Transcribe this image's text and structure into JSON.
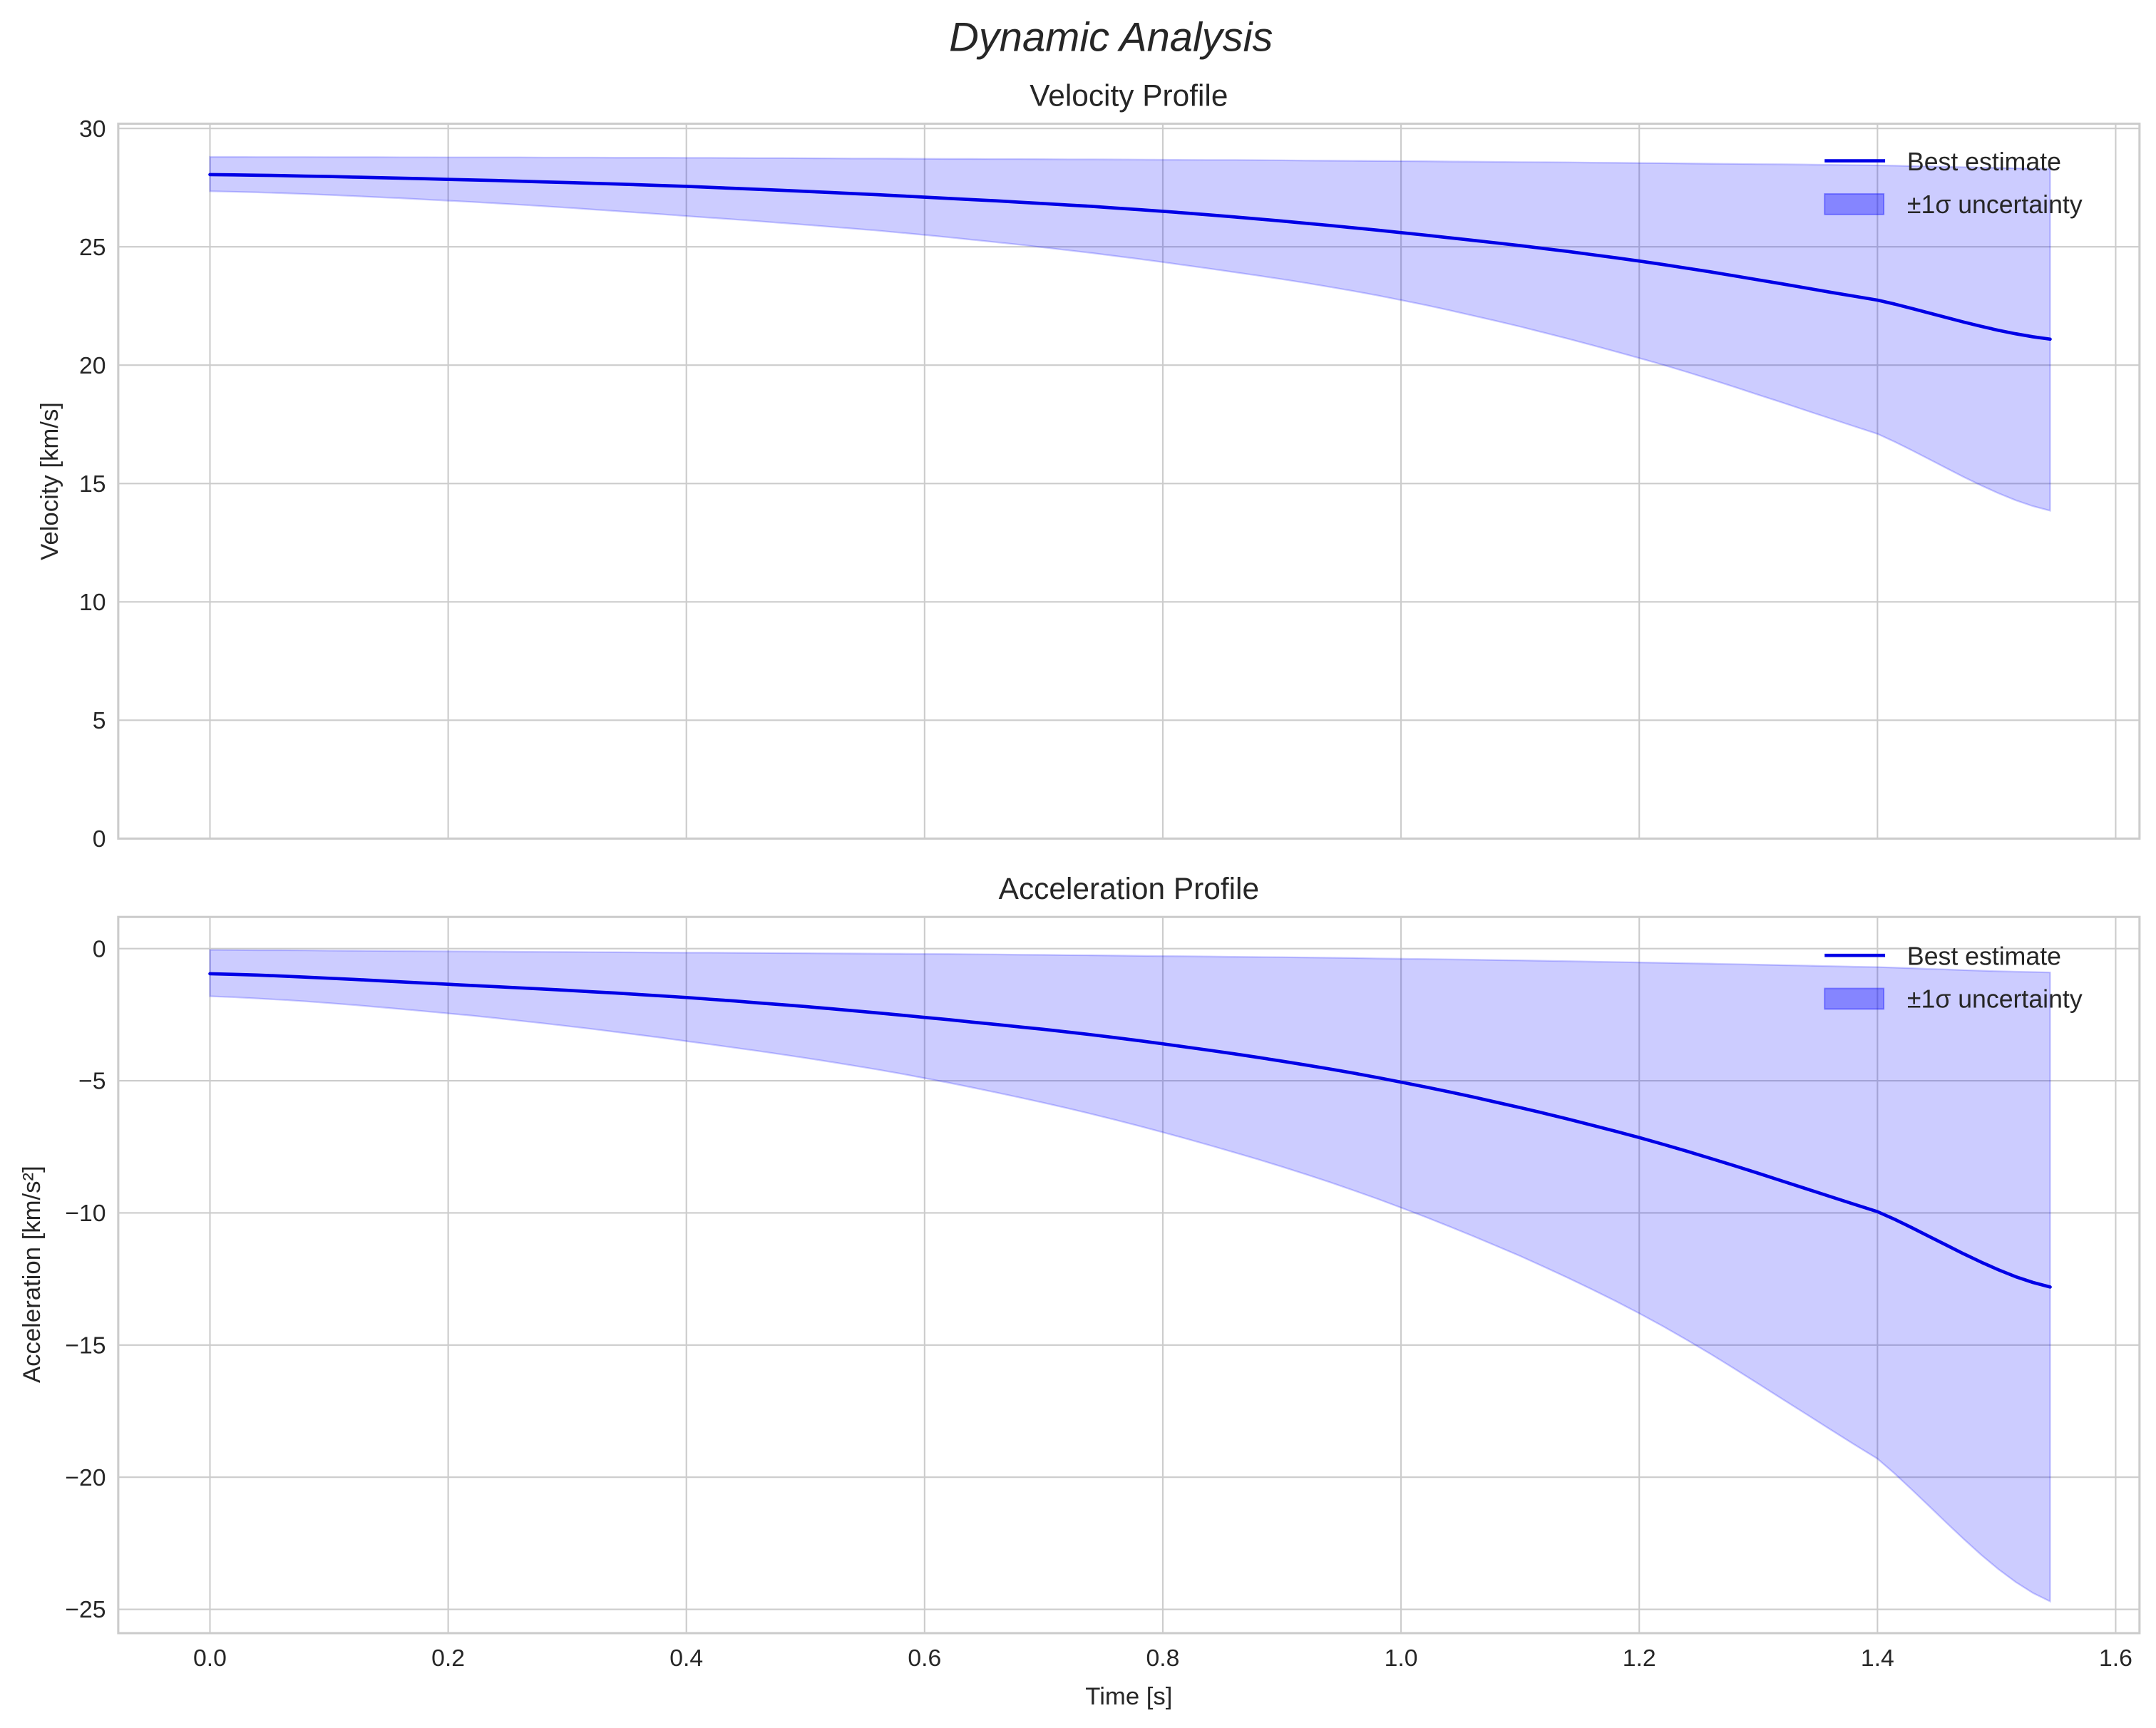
{
  "figure": {
    "suptitle": "Dynamic Analysis",
    "xlabel": "Time [s]"
  },
  "colors": {
    "line": "#0000e6",
    "band": "#0000ff",
    "grid": "#cccccc",
    "text": "#262626"
  },
  "legend": {
    "line_label": "Best estimate",
    "band_label": "±1σ uncertainty"
  },
  "chart_data": [
    {
      "type": "line",
      "title": "Velocity Profile",
      "xlabel": "",
      "ylabel": "Velocity [km/s]",
      "xlim": [
        -0.077,
        1.62
      ],
      "ylim": [
        0,
        30.2
      ],
      "grid": true,
      "legend_position": "upper right",
      "x_ticks": [
        "0.0",
        "0.2",
        "0.4",
        "0.6",
        "0.8",
        "1.0",
        "1.2",
        "1.4",
        "1.6"
      ],
      "y_ticks": [
        "0",
        "5",
        "10",
        "15",
        "20",
        "25",
        "30"
      ],
      "x": [
        0.0,
        0.2,
        0.4,
        0.6,
        0.8,
        1.0,
        1.2,
        1.4,
        1.545
      ],
      "series": [
        {
          "name": "Best estimate",
          "values": [
            28.05,
            27.85,
            27.55,
            27.1,
            26.5,
            25.6,
            24.4,
            22.75,
            21.1
          ]
        },
        {
          "name": "±1σ upper",
          "values": [
            28.8,
            28.78,
            28.76,
            28.72,
            28.68,
            28.62,
            28.54,
            28.44,
            28.3
          ]
        },
        {
          "name": "±1σ lower",
          "values": [
            27.35,
            26.95,
            26.3,
            25.5,
            24.35,
            22.75,
            20.3,
            17.1,
            13.85
          ]
        }
      ]
    },
    {
      "type": "line",
      "title": "Acceleration Profile",
      "xlabel": "Time [s]",
      "ylabel": "Acceleration [km/s²]",
      "xlim": [
        -0.077,
        1.62
      ],
      "ylim": [
        -25.9,
        1.2
      ],
      "grid": true,
      "legend_position": "upper right",
      "x_ticks": [
        "0.0",
        "0.2",
        "0.4",
        "0.6",
        "0.8",
        "1.0",
        "1.2",
        "1.4",
        "1.6"
      ],
      "y_ticks": [
        "0",
        "−5",
        "−10",
        "−15",
        "−20",
        "−25"
      ],
      "x": [
        0.0,
        0.2,
        0.4,
        0.6,
        0.8,
        1.0,
        1.2,
        1.4,
        1.545
      ],
      "series": [
        {
          "name": "Best estimate",
          "values": [
            -0.95,
            -1.35,
            -1.85,
            -2.6,
            -3.6,
            -5.05,
            -7.15,
            -9.95,
            -12.8
          ]
        },
        {
          "name": "±1σ upper",
          "values": [
            -0.05,
            -0.1,
            -0.15,
            -0.2,
            -0.28,
            -0.38,
            -0.52,
            -0.7,
            -0.9
          ]
        },
        {
          "name": "±1σ lower",
          "values": [
            -1.8,
            -2.45,
            -3.5,
            -4.9,
            -6.95,
            -9.8,
            -13.8,
            -19.3,
            -24.7
          ]
        }
      ]
    }
  ]
}
